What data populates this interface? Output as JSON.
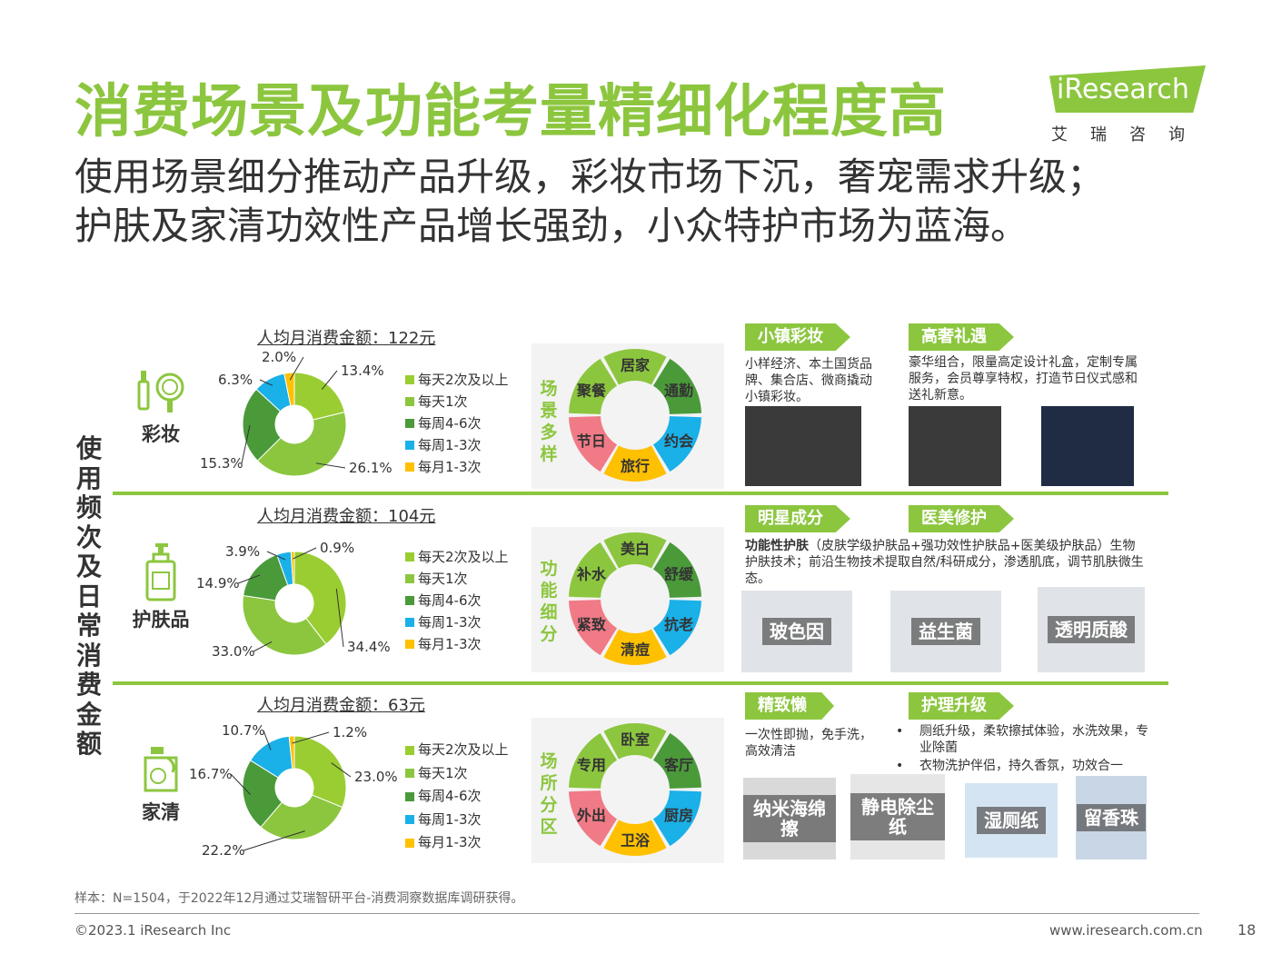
{
  "header": {
    "title": "消费场景及功能考量精细化程度高",
    "subtitle_line1": "使用场景细分推动产品升级，彩妆市场下沉，奢宠需求升级；",
    "subtitle_line2": "护肤及家清功效性产品增长强劲，小众特护市场为蓝海。"
  },
  "logo": {
    "text": "iResearch",
    "cn": "艾瑞咨询",
    "color": "#8cc63f"
  },
  "side_label": "使用频次及日常消费金额",
  "colors": [
    "#9acd32",
    "#8cc63f",
    "#4a9a3a",
    "#1ab0e8",
    "#ffc000"
  ],
  "legend_labels": [
    "每天2次及以上",
    "每天1次",
    "每周4-6次",
    "每周1-3次",
    "每月1-3次"
  ],
  "chart_data": [
    {
      "type": "pie",
      "title": "人均月消费金额：122元",
      "category_label": "彩妆",
      "categories": [
        "每天2次及以上",
        "每天1次",
        "每周4-6次",
        "每周1-3次",
        "每月1-3次"
      ],
      "values": [
        13.4,
        26.1,
        15.3,
        6.3,
        2.0
      ],
      "value_labels": [
        "13.4%",
        "26.1%",
        "15.3%",
        "6.3%",
        "2.0%"
      ]
    },
    {
      "type": "pie",
      "title": "人均月消费金额：104元",
      "category_label": "护肤品",
      "categories": [
        "每天2次及以上",
        "每天1次",
        "每周4-6次",
        "每周1-3次",
        "每月1-3次"
      ],
      "values": [
        34.4,
        33.0,
        14.9,
        3.9,
        0.9
      ],
      "value_labels": [
        "34.4%",
        "33.0%",
        "14.9%",
        "3.9%",
        "0.9%"
      ]
    },
    {
      "type": "pie",
      "title": "人均月消费金额：63元",
      "category_label": "家清",
      "categories": [
        "每天2次及以上",
        "每天1次",
        "每周4-6次",
        "每周1-3次",
        "每月1-3次"
      ],
      "values": [
        23.0,
        22.2,
        16.7,
        10.7,
        1.2
      ],
      "value_labels": [
        "23.0%",
        "22.2%",
        "16.7%",
        "10.7%",
        "1.2%"
      ]
    }
  ],
  "rings": [
    {
      "title": "场景多样",
      "segments": [
        "居家",
        "通勤",
        "约会",
        "旅行",
        "节日",
        "聚餐"
      ],
      "colors": [
        "#8cc63f",
        "#4a9a3a",
        "#1ab0e8",
        "#ffc000",
        "#f07a86",
        "#8cc63f"
      ]
    },
    {
      "title": "功能细分",
      "segments": [
        "美白",
        "舒缓",
        "抗老",
        "清痘",
        "紧致",
        "补水"
      ],
      "colors": [
        "#8cc63f",
        "#4a9a3a",
        "#1ab0e8",
        "#ffc000",
        "#f07a86",
        "#8cc63f"
      ]
    },
    {
      "title": "场所分区",
      "segments": [
        "卧室",
        "客厅",
        "厨房",
        "卫浴",
        "外出",
        "专用"
      ],
      "colors": [
        "#8cc63f",
        "#4a9a3a",
        "#1ab0e8",
        "#ffc000",
        "#f07a86",
        "#8cc63f"
      ]
    }
  ],
  "features": {
    "row1": {
      "tag_a": "小镇彩妆",
      "desc_a": "小样经济、本土国货品牌、集合店、微商撬动小镇彩妆。",
      "tag_b": "高奢礼遇",
      "desc_b": "豪华组合，限量高定设计礼盒，定制专属服务，会员尊享特权，打造节日仪式感和送礼新意。"
    },
    "row2": {
      "tag_a": "明星成分",
      "tag_b": "医美修护",
      "desc_bold": "功能性护肤",
      "desc_rest": "（皮肤学级护肤品+强功效性护肤品+医美级护肤品）生物护肤技术；前沿生物技术提取自然/科研成分，渗透肌底，调节肌肤微生态。",
      "captions": [
        "玻色因",
        "益生菌",
        "透明质酸"
      ]
    },
    "row3": {
      "tag_a": "精致懒",
      "desc_a": "一次性即抛，免手洗，高效清洁",
      "tag_b": "护理升级",
      "bullet_1": "厕纸升级，柔软擦拭体验，水洗效果，专业除菌",
      "bullet_2": "衣物洗护伴侣，持久香氛，功效合一",
      "captions": [
        "纳米海绵擦",
        "静电除尘纸",
        "湿厕纸",
        "留香珠"
      ]
    }
  },
  "footer": {
    "note": "样本：N=1504，于2022年12月通过艾瑞智研平台-消费洞察数据库调研获得。",
    "copyright": "©2023.1 iResearch Inc",
    "website": "www.iresearch.com.cn",
    "page": "18"
  }
}
